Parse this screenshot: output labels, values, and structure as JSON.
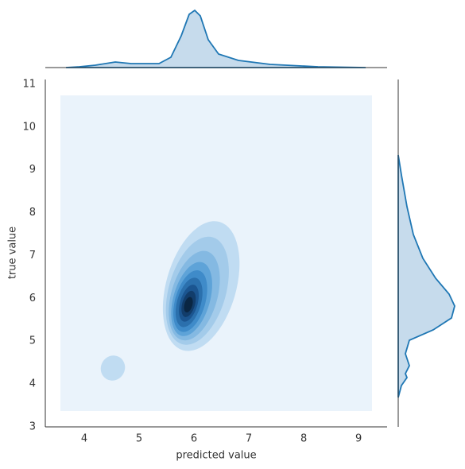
{
  "chart_data": {
    "type": "kde-joint",
    "x_label": "predicted value",
    "y_label": "true value",
    "xlim": [
      3.29,
      9.52
    ],
    "ylim": [
      3,
      11.11
    ],
    "xticks": [
      4,
      5,
      6,
      7,
      8,
      9
    ],
    "yticks": [
      3,
      4,
      5,
      6,
      7,
      8,
      9,
      10,
      11
    ],
    "color": "#1f77b4",
    "grid": false
  }
}
